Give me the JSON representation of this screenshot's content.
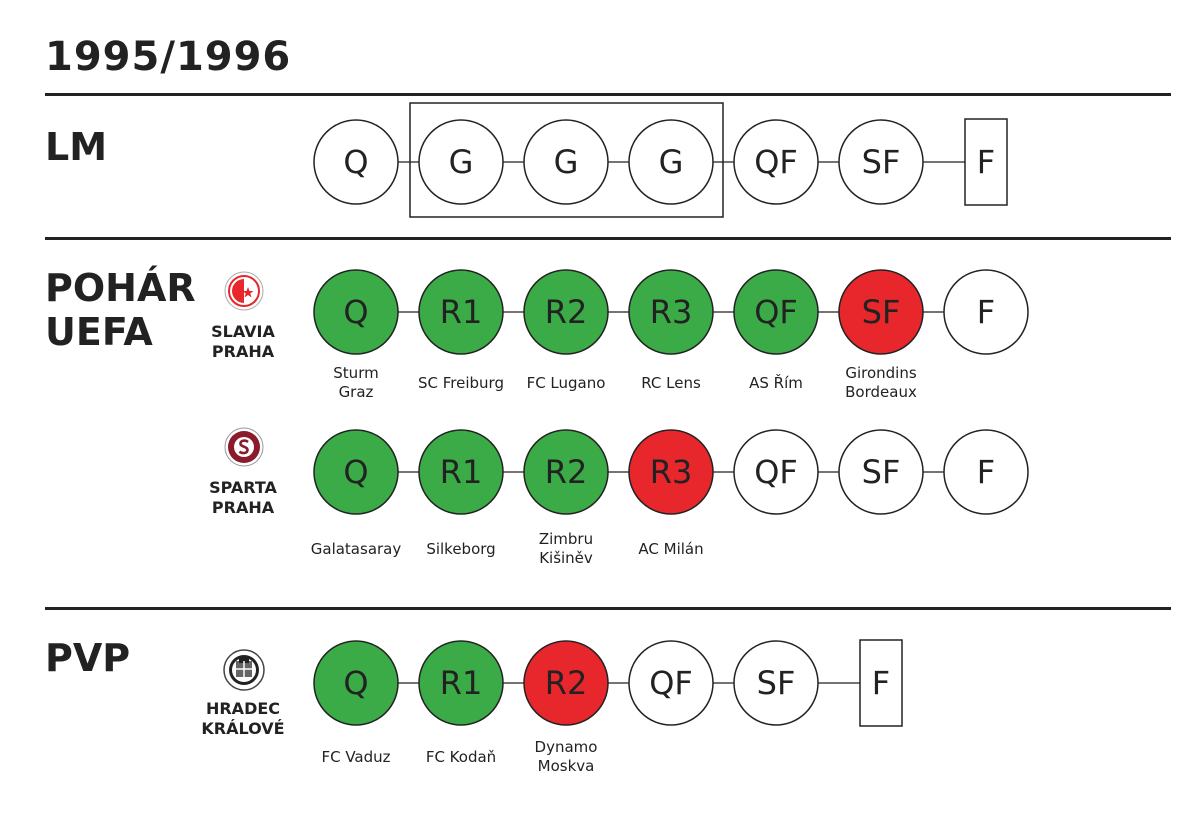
{
  "season": "1995/1996",
  "colors": {
    "won": "#3bab48",
    "lost": "#e8272d",
    "neutral": "#ffffff",
    "stroke": "#222222"
  },
  "sections": {
    "lm": {
      "label": "LM"
    },
    "uefa": {
      "label_line1": "POHÁR",
      "label_line2": "UEFA"
    },
    "pvp": {
      "label": "PVP"
    }
  },
  "tracks": [
    {
      "team_line1": "",
      "team_line2": "",
      "logo": "",
      "stages": [
        {
          "label": "Q",
          "status": "neutral",
          "shape": "circle",
          "opponent": []
        },
        {
          "label": "G",
          "status": "neutral",
          "shape": "circle",
          "opponent": []
        },
        {
          "label": "G",
          "status": "neutral",
          "shape": "circle",
          "opponent": []
        },
        {
          "label": "G",
          "status": "neutral",
          "shape": "circle",
          "opponent": []
        },
        {
          "label": "QF",
          "status": "neutral",
          "shape": "circle",
          "opponent": []
        },
        {
          "label": "SF",
          "status": "neutral",
          "shape": "circle",
          "opponent": []
        },
        {
          "label": "F",
          "status": "neutral",
          "shape": "rect",
          "opponent": []
        }
      ]
    },
    {
      "team_line1": "SLAVIA",
      "team_line2": "PRAHA",
      "logo": "slavia-praha-logo",
      "stages": [
        {
          "label": "Q",
          "status": "won",
          "shape": "circle",
          "opponent": [
            "Sturm",
            "Graz"
          ]
        },
        {
          "label": "R1",
          "status": "won",
          "shape": "circle",
          "opponent": [
            "SC Freiburg"
          ]
        },
        {
          "label": "R2",
          "status": "won",
          "shape": "circle",
          "opponent": [
            "FC Lugano"
          ]
        },
        {
          "label": "R3",
          "status": "won",
          "shape": "circle",
          "opponent": [
            "RC Lens"
          ]
        },
        {
          "label": "QF",
          "status": "won",
          "shape": "circle",
          "opponent": [
            "AS Řím"
          ]
        },
        {
          "label": "SF",
          "status": "lost",
          "shape": "circle",
          "opponent": [
            "Girondins",
            "Bordeaux"
          ]
        },
        {
          "label": "F",
          "status": "neutral",
          "shape": "circle",
          "opponent": []
        }
      ]
    },
    {
      "team_line1": "SPARTA",
      "team_line2": "PRAHA",
      "logo": "sparta-praha-logo",
      "stages": [
        {
          "label": "Q",
          "status": "won",
          "shape": "circle",
          "opponent": [
            "Galatasaray"
          ]
        },
        {
          "label": "R1",
          "status": "won",
          "shape": "circle",
          "opponent": [
            "Silkeborg"
          ]
        },
        {
          "label": "R2",
          "status": "won",
          "shape": "circle",
          "opponent": [
            "Zimbru",
            "Kišiněv"
          ]
        },
        {
          "label": "R3",
          "status": "lost",
          "shape": "circle",
          "opponent": [
            "AC Milán"
          ]
        },
        {
          "label": "QF",
          "status": "neutral",
          "shape": "circle",
          "opponent": []
        },
        {
          "label": "SF",
          "status": "neutral",
          "shape": "circle",
          "opponent": []
        },
        {
          "label": "F",
          "status": "neutral",
          "shape": "circle",
          "opponent": []
        }
      ]
    },
    {
      "team_line1": "HRADEC",
      "team_line2": "KRÁLOVÉ",
      "logo": "hradec-kralove-logo",
      "stages": [
        {
          "label": "Q",
          "status": "won",
          "shape": "circle",
          "opponent": [
            "FC Vaduz"
          ]
        },
        {
          "label": "R1",
          "status": "won",
          "shape": "circle",
          "opponent": [
            "FC Kodaň"
          ]
        },
        {
          "label": "R2",
          "status": "lost",
          "shape": "circle",
          "opponent": [
            "Dynamo",
            "Moskva"
          ]
        },
        {
          "label": "QF",
          "status": "neutral",
          "shape": "circle",
          "opponent": []
        },
        {
          "label": "SF",
          "status": "neutral",
          "shape": "circle",
          "opponent": []
        },
        {
          "label": "F",
          "status": "neutral",
          "shape": "rect",
          "opponent": []
        }
      ]
    }
  ]
}
